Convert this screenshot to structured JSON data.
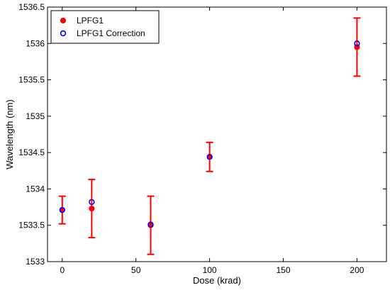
{
  "chart_data": {
    "type": "scatter",
    "title": "",
    "xlabel": "Dose (krad)",
    "ylabel": "Wavelength (nm)",
    "xlim": [
      -10,
      220
    ],
    "ylim": [
      1533,
      1536.5
    ],
    "xticks": [
      0,
      50,
      100,
      150,
      200
    ],
    "yticks": [
      1533,
      1533.5,
      1534,
      1534.5,
      1535,
      1535.5,
      1536,
      1536.5
    ],
    "xtick_labels": [
      "0",
      "50",
      "100",
      "150",
      "200"
    ],
    "ytick_labels": [
      "1533",
      "1533.5",
      "1534",
      "1534.5",
      "1535",
      "1535.5",
      "1536",
      "1536.5"
    ],
    "grid": false,
    "legend_position": "top-left",
    "series": [
      {
        "name": "LPFG1",
        "marker": "filled-circle",
        "color": "#ff0000",
        "x": [
          0,
          20,
          60,
          100,
          200
        ],
        "y": [
          1533.71,
          1533.73,
          1533.5,
          1534.44,
          1535.95
        ],
        "error_low": [
          1533.52,
          1533.33,
          1533.1,
          1534.24,
          1535.55
        ],
        "error_high": [
          1533.9,
          1534.13,
          1533.9,
          1534.64,
          1536.35
        ]
      },
      {
        "name": "LPFG1 Correction",
        "marker": "open-circle",
        "color": "#0000ff",
        "x": [
          0,
          20,
          60,
          100,
          200
        ],
        "y": [
          1533.71,
          1533.82,
          1533.51,
          1534.44,
          1536.0
        ]
      }
    ],
    "errorbar_color": "#ff0000"
  }
}
